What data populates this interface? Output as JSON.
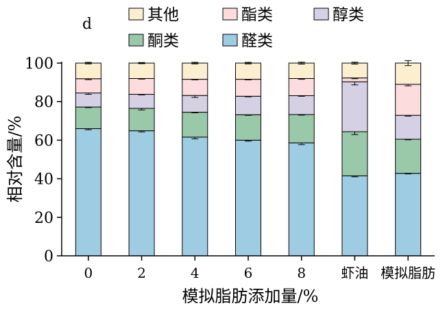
{
  "chart_data": {
    "type": "bar",
    "stacked": true,
    "panel_label": "d",
    "xlabel": "模拟脂肪添加量/%",
    "ylabel": "相对含量/%",
    "ylim": [
      0,
      100
    ],
    "yticks": [
      0,
      20,
      40,
      60,
      80,
      100
    ],
    "grid": false,
    "legend_position": "top",
    "categories": [
      "0",
      "2",
      "4",
      "6",
      "8",
      "虾油",
      "模拟脂肪"
    ],
    "series": [
      {
        "name": "醛类",
        "color": "#9dcce3",
        "values": [
          66,
          64.9,
          61.6,
          60,
          58.6,
          41.5,
          42.8
        ],
        "errors": [
          0.6,
          0.6,
          0.9,
          0.5,
          0.9,
          0.5,
          0.3
        ]
      },
      {
        "name": "酮类",
        "color": "#9ac9a9",
        "values": [
          11.2,
          11.6,
          12.9,
          13.2,
          14.7,
          22.9,
          17.7
        ],
        "errors": [
          0.3,
          0.8,
          0.3,
          0.3,
          0.3,
          1.5,
          0.3
        ]
      },
      {
        "name": "醇类",
        "color": "#d5d0e4",
        "values": [
          7.3,
          7.3,
          8.7,
          9.6,
          9.8,
          25.9,
          12.4
        ],
        "errors": [
          0.7,
          0.3,
          1,
          0.3,
          0.3,
          1.6,
          0.4
        ]
      },
      {
        "name": "酯类",
        "color": "#fcdcdc",
        "values": [
          7.4,
          8.2,
          8.4,
          8.8,
          8.9,
          2,
          16.1
        ],
        "errors": [
          0.5,
          0.3,
          0.3,
          0.3,
          0.4,
          0.4,
          0.8
        ]
      },
      {
        "name": "其他",
        "color": "#fcefd0",
        "values": [
          8.1,
          8,
          8.4,
          8.4,
          8,
          7.7,
          11
        ],
        "errors": [
          0.4,
          0.3,
          0.4,
          0.4,
          0.5,
          0.5,
          1.3
        ]
      }
    ],
    "legend_order": [
      "其他",
      "酯类",
      "醇类",
      "酮类",
      "醛类"
    ]
  }
}
